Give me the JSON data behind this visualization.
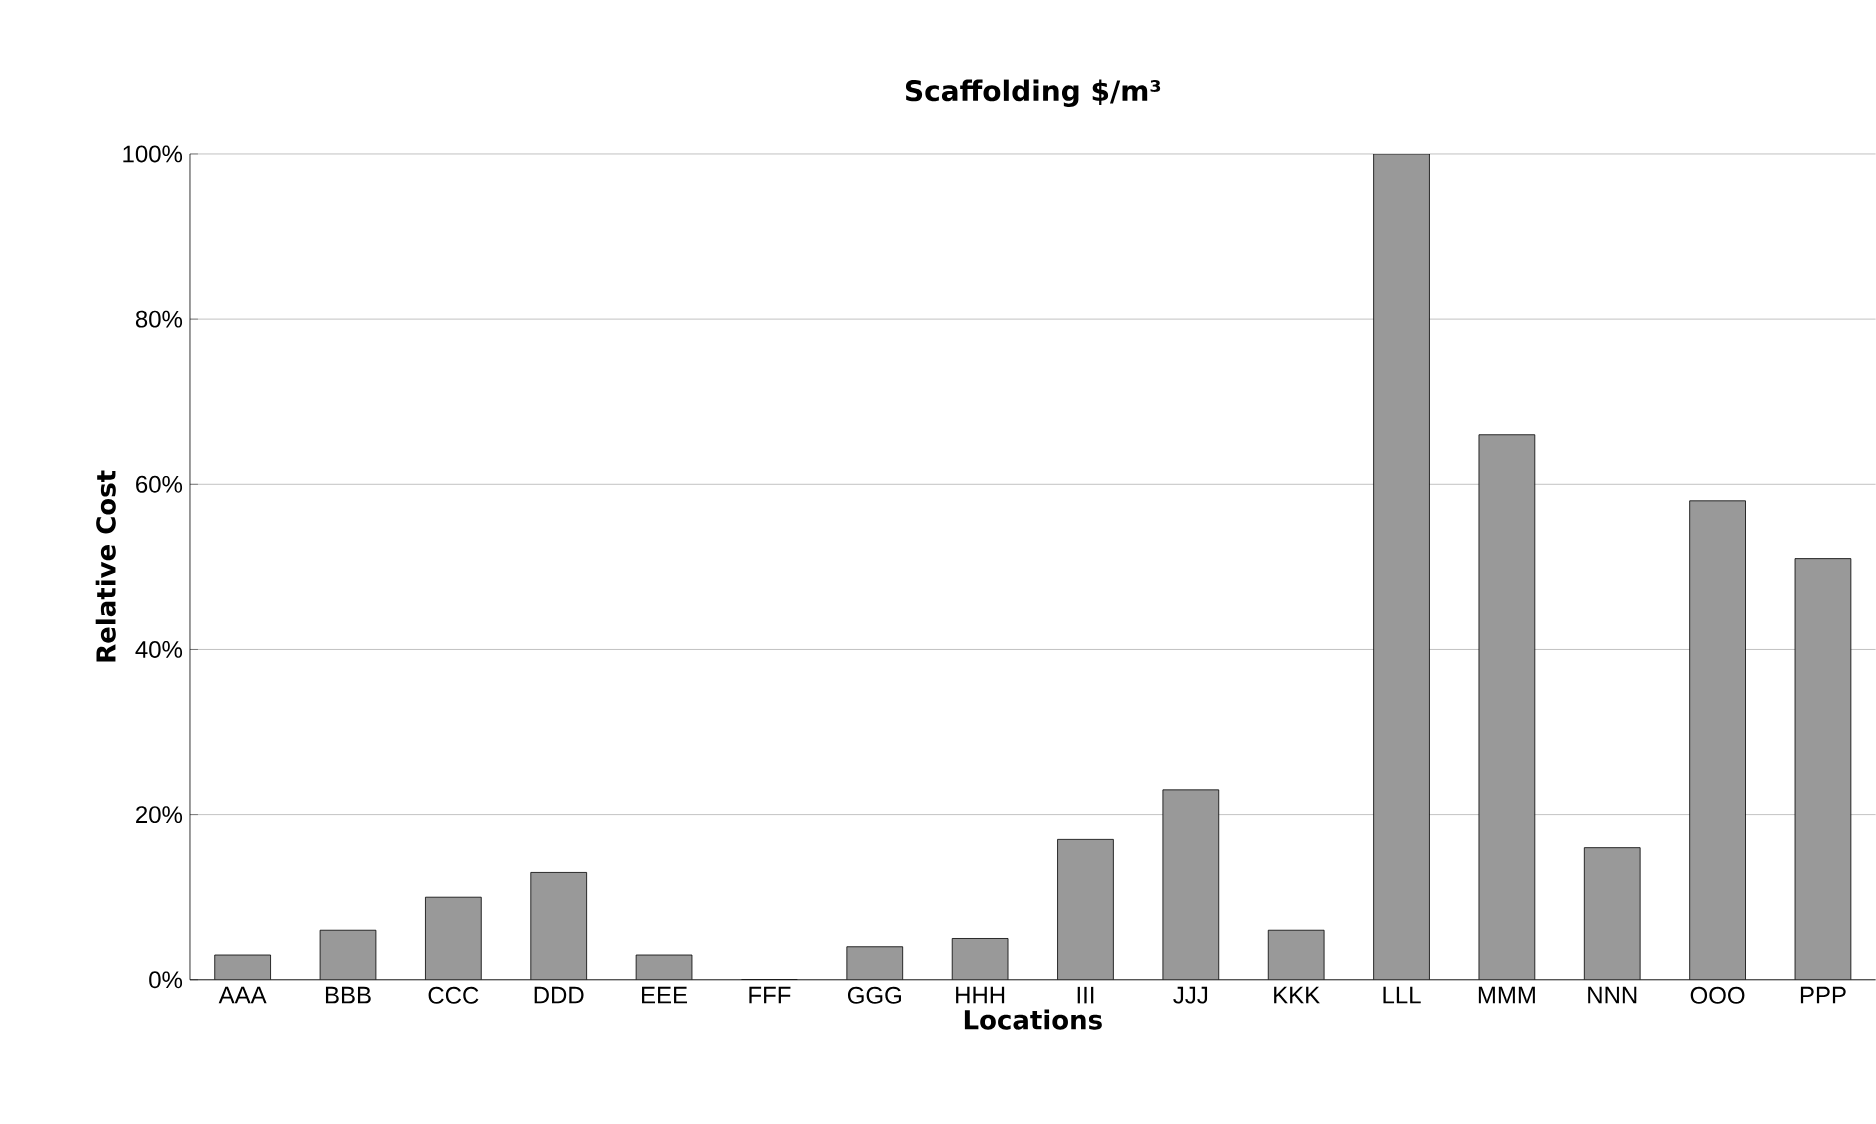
{
  "chart_data": {
    "type": "bar",
    "title": "Scaffolding $/m³",
    "xlabel": "Locations",
    "ylabel": "Relative Cost",
    "categories": [
      "AAA",
      "BBB",
      "CCC",
      "DDD",
      "EEE",
      "FFF",
      "GGG",
      "HHH",
      "III",
      "JJJ",
      "KKK",
      "LLL",
      "MMM",
      "NNN",
      "OOO",
      "PPP"
    ],
    "values": [
      3,
      6,
      10,
      13,
      3,
      0,
      4,
      5,
      17,
      23,
      6,
      100,
      66,
      16,
      58,
      51
    ],
    "color": "#999999",
    "ylim": [
      0,
      100
    ],
    "yticks": [
      {
        "value": 0,
        "label": "0%"
      },
      {
        "value": 20,
        "label": "20%"
      },
      {
        "value": 40,
        "label": "40%"
      },
      {
        "value": 60,
        "label": "60%"
      },
      {
        "value": 80,
        "label": "80%"
      },
      {
        "value": 100,
        "label": "100%"
      }
    ],
    "grid": "y"
  }
}
